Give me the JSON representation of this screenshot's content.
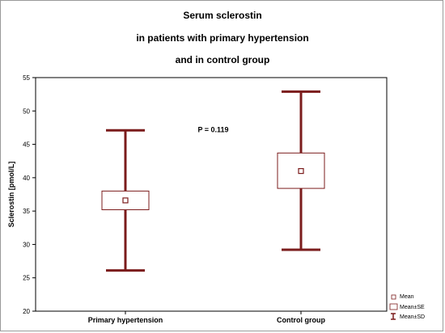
{
  "chart_data": {
    "type": "box",
    "title_lines": [
      "Serum sclerostin",
      "in patients with primary hypertension",
      "and in control group"
    ],
    "ylabel": "Sclerostin [pmol/L]",
    "ylim": [
      20,
      55
    ],
    "yticks": [
      20,
      25,
      30,
      35,
      40,
      45,
      50,
      55
    ],
    "grid": false,
    "categories": [
      "Primary hypertension",
      "Control group"
    ],
    "groups": [
      {
        "name": "Primary hypertension",
        "mean": 36.6,
        "se_low": 35.2,
        "se_high": 38.0,
        "sd_low": 26.1,
        "sd_high": 47.1
      },
      {
        "name": "Control group",
        "mean": 41.0,
        "se_low": 38.4,
        "se_high": 43.7,
        "sd_low": 29.2,
        "sd_high": 52.9
      }
    ],
    "annotation": {
      "text": "P = 0.119",
      "x": 0.5,
      "y": 46.8
    },
    "legend": [
      "Mean",
      "Mean±SE",
      "Mean±SD"
    ],
    "legend_position": "bottom-right",
    "colors": {
      "box": "#7b1c1c",
      "whisker": "#7b1c1c",
      "axis": "#000000"
    }
  }
}
